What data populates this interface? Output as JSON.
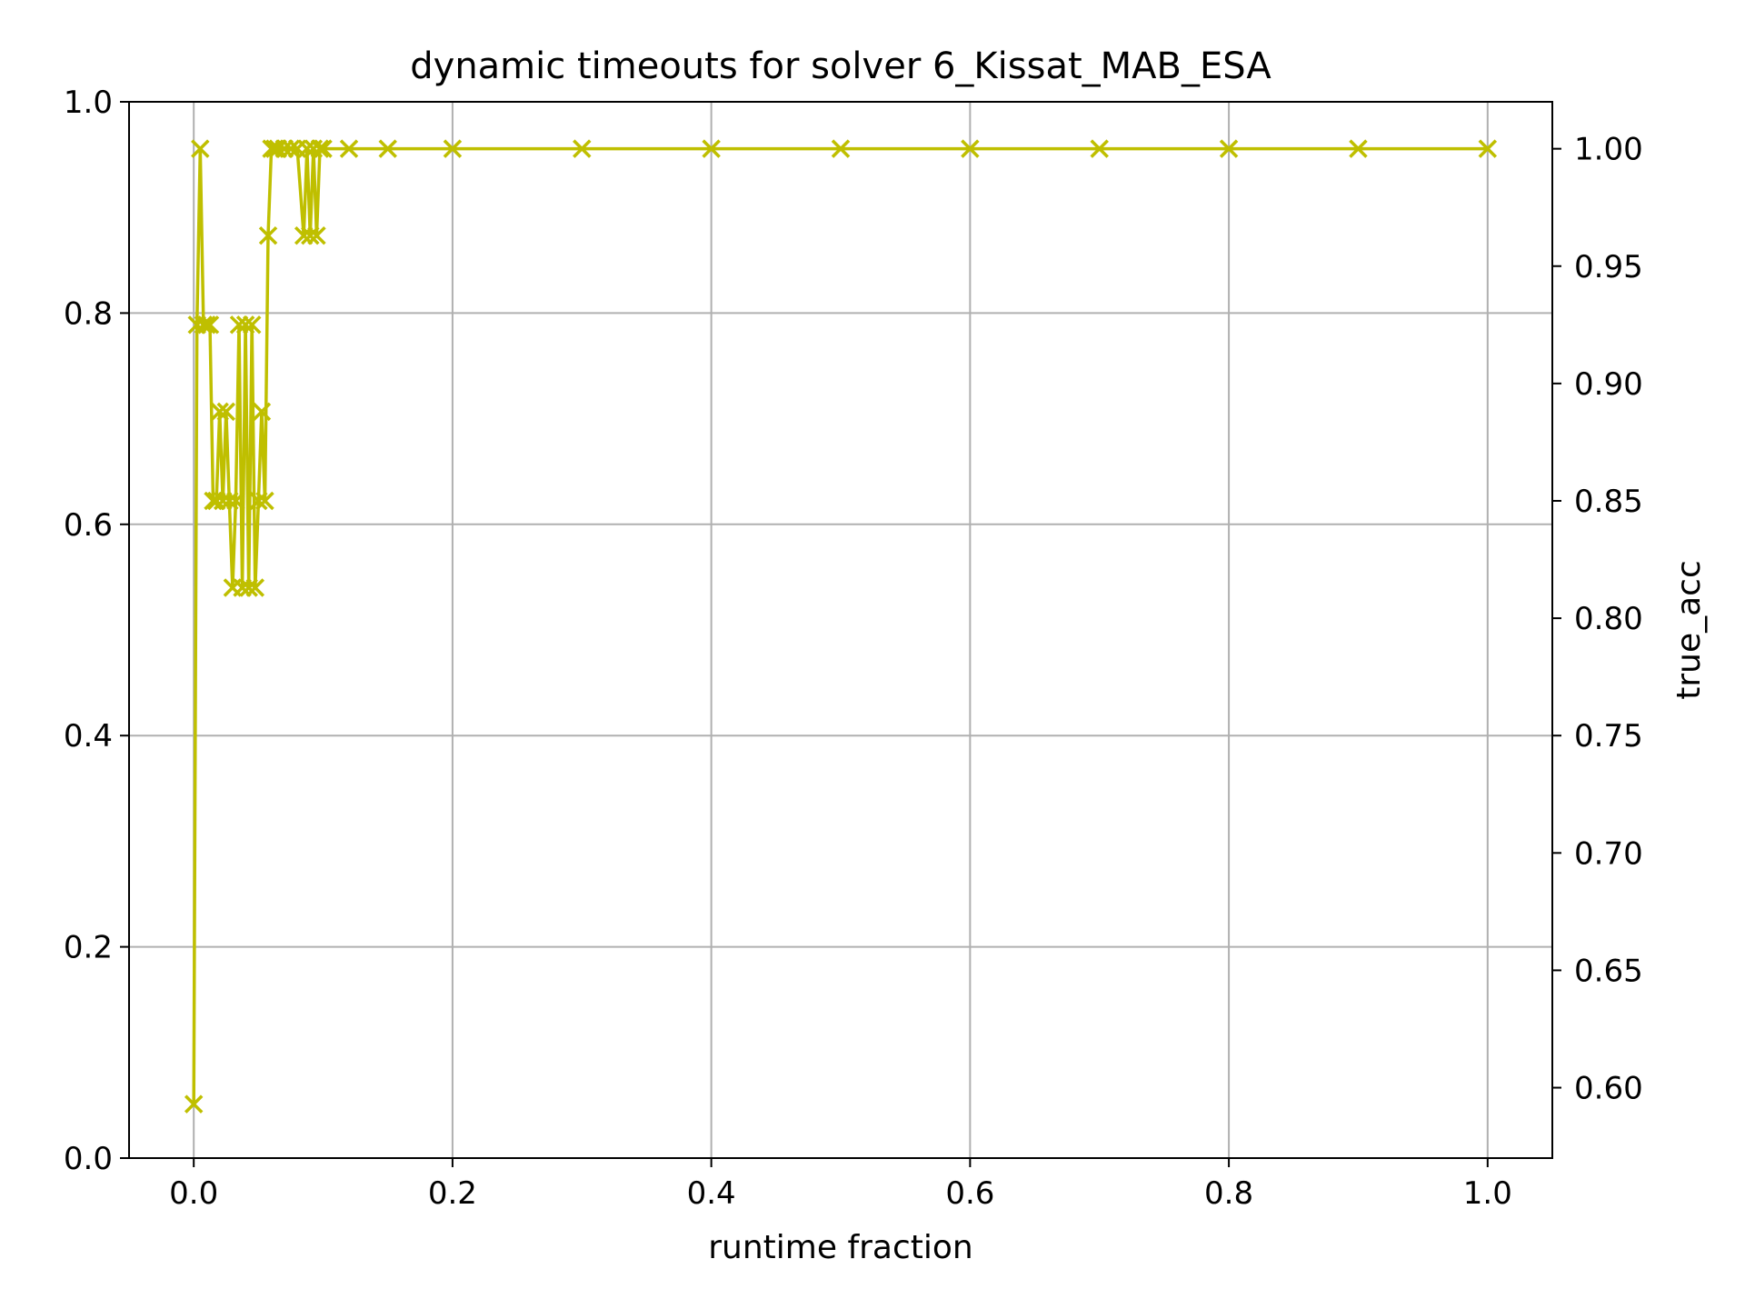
{
  "chart_data": {
    "type": "line",
    "title": "dynamic timeouts for solver 6_Kissat_MAB_ESA",
    "xlabel": "runtime fraction",
    "ylabel": "",
    "y2label": "true_acc",
    "y2label_color": "#ff0000",
    "xlim": [
      -0.05,
      1.05
    ],
    "ylim": [
      0.0,
      1.0
    ],
    "y2lim": [
      0.57,
      1.02
    ],
    "xticks": [
      "0.0",
      "0.2",
      "0.4",
      "0.6",
      "0.8",
      "1.0"
    ],
    "yticks": [
      "0.0",
      "0.2",
      "0.4",
      "0.6",
      "0.8",
      "1.0"
    ],
    "y2ticks": [
      "0.60",
      "0.65",
      "0.70",
      "0.75",
      "0.80",
      "0.85",
      "0.90",
      "0.95",
      "1.00"
    ],
    "grid": true,
    "marker": "x",
    "series": [
      {
        "color": "#bfbf00",
        "x": [
          0.0,
          0.0025,
          0.005,
          0.0075,
          0.01,
          0.0125,
          0.015,
          0.0175,
          0.02,
          0.0225,
          0.025,
          0.0275,
          0.03,
          0.0325,
          0.035,
          0.0375,
          0.04,
          0.0425,
          0.045,
          0.0475,
          0.05,
          0.0525,
          0.055,
          0.0575,
          0.06,
          0.0625,
          0.065,
          0.07,
          0.075,
          0.08,
          0.085,
          0.0875,
          0.09,
          0.0925,
          0.095,
          0.0975,
          0.1,
          0.12,
          0.15,
          0.2,
          0.3,
          0.4,
          0.5,
          0.6,
          0.7,
          0.8,
          0.9,
          1.0
        ],
        "y": [
          0.593,
          0.925,
          1.0,
          0.925,
          0.925,
          0.925,
          0.85,
          0.85,
          0.888,
          0.85,
          0.888,
          0.85,
          0.813,
          0.85,
          0.925,
          0.813,
          0.925,
          0.813,
          0.925,
          0.813,
          0.85,
          0.888,
          0.85,
          0.963,
          1.0,
          1.0,
          1.0,
          1.0,
          1.0,
          1.0,
          0.963,
          1.0,
          0.963,
          1.0,
          0.963,
          1.0,
          1.0,
          1.0,
          1.0,
          1.0,
          1.0,
          1.0,
          1.0,
          1.0,
          1.0,
          1.0,
          1.0,
          1.0
        ]
      }
    ]
  }
}
